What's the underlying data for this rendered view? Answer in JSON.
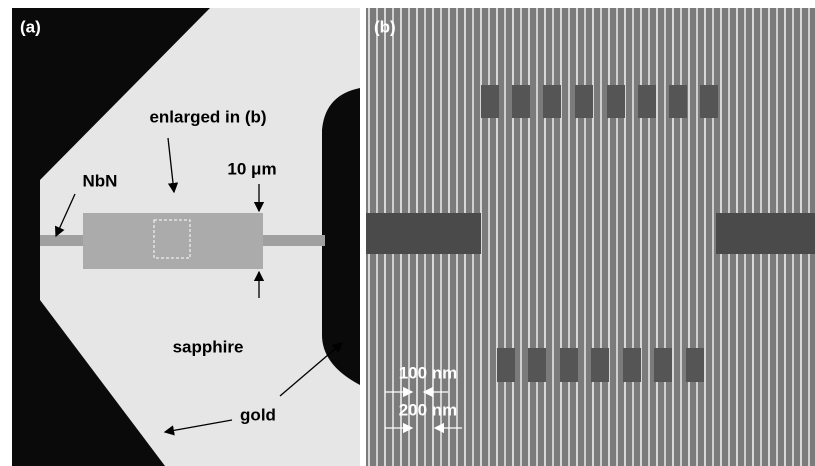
{
  "panel_a": {
    "label": "(a)",
    "annotations": {
      "enlarged": "enlarged in (b)",
      "nbn": "NbN",
      "scale": "10 μm",
      "sapphire": "sapphire",
      "gold": "gold"
    }
  },
  "panel_b": {
    "label": "(b)",
    "scales": [
      "100 nm",
      "200 nm"
    ]
  }
}
